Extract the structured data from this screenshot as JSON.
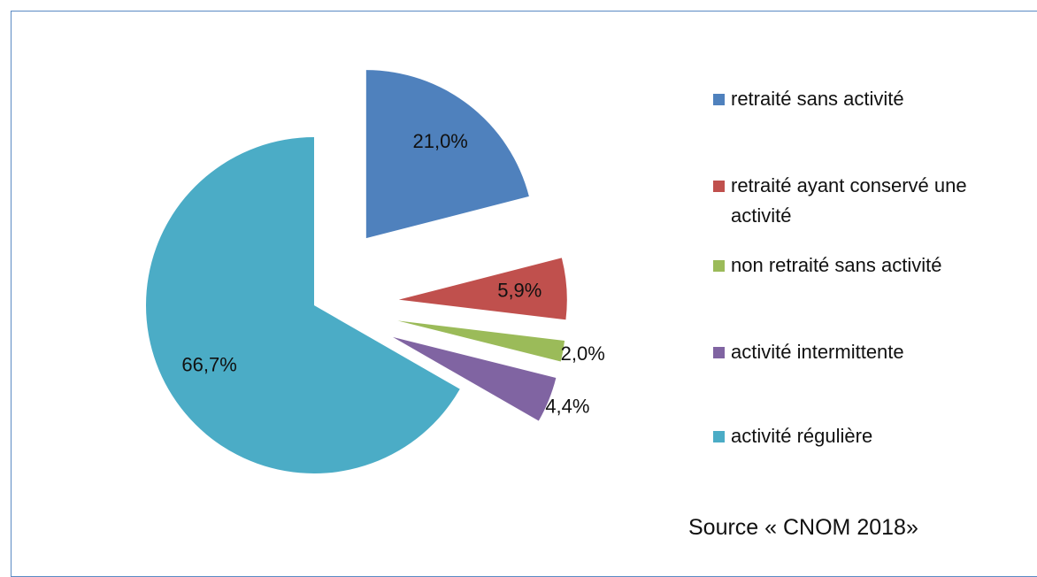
{
  "chart_data": {
    "type": "pie",
    "categories": [
      "retraité sans activité",
      "retraité ayant conservé une activité",
      "non retraité sans activité",
      "activité intermittente",
      "activité régulière"
    ],
    "values": [
      21.0,
      5.9,
      2.0,
      4.4,
      66.7
    ],
    "value_labels": [
      "21,0%",
      "5,9%",
      "2,0%",
      "4,4%",
      "66,7%"
    ],
    "colors": [
      "#4f81bd",
      "#c0504d",
      "#9bbb59",
      "#8064a2",
      "#4bacc6"
    ],
    "source": "Source « CNOM 2018»"
  }
}
